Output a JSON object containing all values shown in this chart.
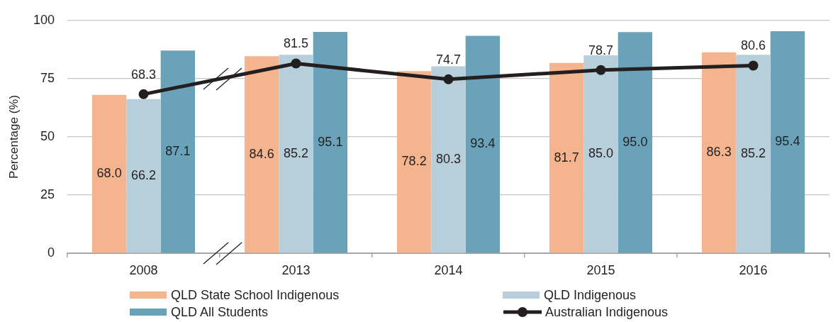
{
  "chart_data": {
    "type": "bar",
    "ylabel": "Percentage (%)",
    "categories": [
      "2008",
      "2013",
      "2014",
      "2015",
      "2016"
    ],
    "series": [
      {
        "name": "QLD State School Indigenous",
        "color": "#f3b48e",
        "values": [
          68.0,
          84.6,
          78.2,
          81.7,
          86.3
        ],
        "value_labels": [
          "68.0",
          "84.6",
          "78.2",
          "81.7",
          "86.3"
        ]
      },
      {
        "name": "QLD Indigenous",
        "color": "#b7cfdb",
        "values": [
          66.2,
          85.2,
          80.3,
          85.0,
          85.2
        ],
        "value_labels": [
          "66.2",
          "85.2",
          "80.3",
          "85.0",
          "85.2"
        ]
      },
      {
        "name": "QLD All Students",
        "color": "#6aa3b9",
        "values": [
          87.1,
          95.1,
          93.4,
          95.0,
          95.4
        ],
        "value_labels": [
          "87.1",
          "95.1",
          "93.4",
          "95.0",
          "95.4"
        ]
      },
      {
        "name": "Australian Indigenous",
        "type": "line",
        "color": "#231f20",
        "marker": "circle",
        "values": [
          68.3,
          81.5,
          74.7,
          78.7,
          80.6
        ],
        "value_labels": [
          "68.3",
          "81.5",
          "74.7",
          "78.7",
          "80.6"
        ]
      }
    ],
    "ylim": [
      0,
      100
    ],
    "yticks": [
      0,
      25,
      50,
      75,
      100
    ],
    "grid": "y",
    "legend": "bottom"
  }
}
